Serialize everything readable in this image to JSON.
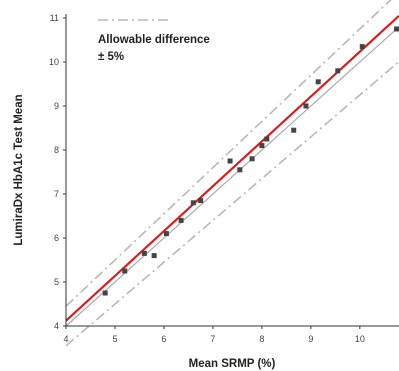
{
  "chart_data": {
    "type": "scatter",
    "title": "",
    "xlabel": "Mean SRMP (%)",
    "ylabel": "LumiraDx HbA1c Test Mean",
    "xlim": [
      4,
      10.8
    ],
    "ylim": [
      4,
      11
    ],
    "x_ticks": [
      "4",
      "5",
      "6",
      "7",
      "8",
      "9",
      "10"
    ],
    "y_ticks": [
      "4",
      "5",
      "6",
      "7",
      "8",
      "9",
      "10",
      "11"
    ],
    "grid": false,
    "legend_position": "top-left",
    "legend": {
      "line1": "Allowable difference",
      "line2": "± 5%"
    },
    "points": [
      {
        "x": 4.8,
        "y": 4.75
      },
      {
        "x": 5.2,
        "y": 5.25
      },
      {
        "x": 5.6,
        "y": 5.65
      },
      {
        "x": 5.8,
        "y": 5.6
      },
      {
        "x": 6.05,
        "y": 6.1
      },
      {
        "x": 6.35,
        "y": 6.4
      },
      {
        "x": 6.6,
        "y": 6.8
      },
      {
        "x": 6.75,
        "y": 6.85
      },
      {
        "x": 7.35,
        "y": 7.75
      },
      {
        "x": 7.55,
        "y": 7.55
      },
      {
        "x": 7.8,
        "y": 7.8
      },
      {
        "x": 8.0,
        "y": 8.1
      },
      {
        "x": 8.1,
        "y": 8.25
      },
      {
        "x": 8.65,
        "y": 8.45
      },
      {
        "x": 8.9,
        "y": 9.0
      },
      {
        "x": 9.15,
        "y": 9.55
      },
      {
        "x": 9.55,
        "y": 9.8
      },
      {
        "x": 10.05,
        "y": 10.35
      },
      {
        "x": 10.75,
        "y": 10.75
      }
    ],
    "regression": {
      "x0": 4,
      "y0": 4.12,
      "x1": 10.8,
      "y1": 11.05
    },
    "identity": {
      "x0": 4,
      "y0": 4,
      "x1": 10.8,
      "y1": 10.8
    },
    "tolerance_pct": 5,
    "colors": {
      "points": "#444444",
      "regression": "#d62020",
      "identity": "#aaaaaa",
      "bounds": "#b8b8b8",
      "axis": "#333333"
    }
  }
}
